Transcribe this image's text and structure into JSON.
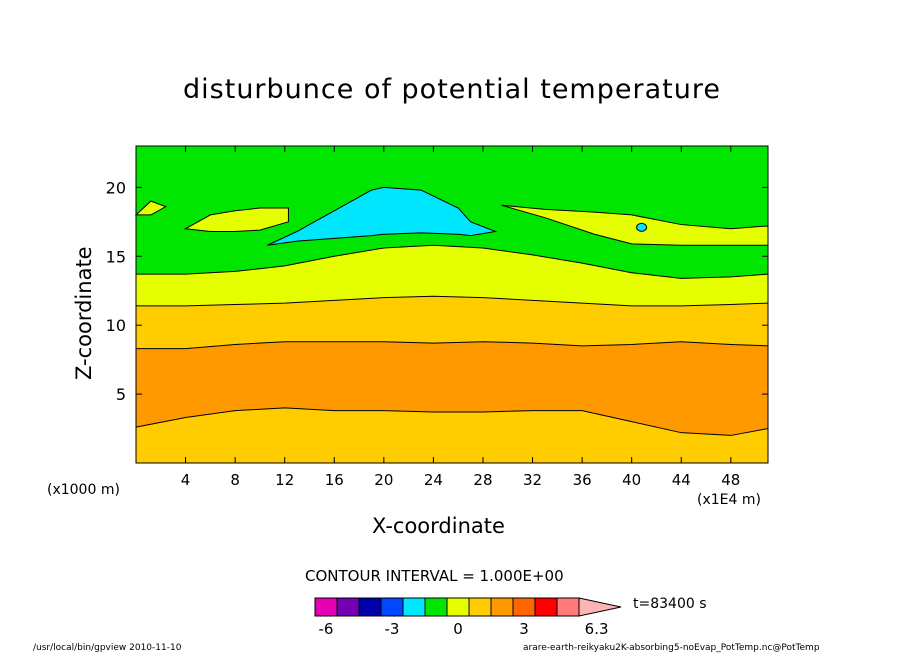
{
  "chart_data": {
    "type": "contour",
    "title": "disturbunce of potential temperature",
    "xlabel": "X-coordinate",
    "ylabel": "Z-coordinate",
    "x_unit": "(x1E4 m)",
    "z_unit": "(x1000 m)",
    "xlim": [
      0,
      51
    ],
    "ylim": [
      0,
      23
    ],
    "x_ticks": [
      4,
      8,
      12,
      16,
      20,
      24,
      28,
      32,
      36,
      40,
      44,
      48
    ],
    "y_ticks": [
      5,
      10,
      15,
      20
    ],
    "contour_interval": "CONTOUR INTERVAL = 1.000E+00",
    "time": "t=83400 s",
    "colorbar": {
      "tick_labels": [
        "-6",
        "-3",
        "0",
        "3",
        "6.3"
      ],
      "tick_values": [
        -6,
        -3,
        0,
        3,
        6.3
      ],
      "colors": [
        "#e600b4",
        "#7300b4",
        "#0000aa",
        "#0048ff",
        "#00e6ff",
        "#00e600",
        "#e6ff00",
        "#ffcc00",
        "#ff9900",
        "#ff6600",
        "#ff0000",
        "#ff7a7a",
        "#ffb4b4"
      ]
    },
    "regions": [
      {
        "level": "6",
        "color": "#ff9900",
        "x": [
          0,
          4,
          8,
          12,
          16,
          20,
          24,
          28,
          32,
          36,
          40,
          44,
          48,
          51
        ],
        "z_bottom": [
          2.6,
          3.3,
          3.8,
          4.0,
          3.8,
          3.8,
          3.7,
          3.7,
          3.8,
          3.8,
          3.0,
          2.2,
          2.0,
          2.5
        ],
        "z_top": [
          8.3,
          8.3,
          8.6,
          8.8,
          8.8,
          8.8,
          8.7,
          8.8,
          8.7,
          8.5,
          8.6,
          8.8,
          8.6,
          8.5
        ]
      },
      {
        "level": "2",
        "color": "#e6ff00",
        "x": [
          0,
          4,
          8,
          12,
          16,
          20,
          24,
          28,
          32,
          36,
          40,
          44,
          48,
          51
        ],
        "z_bottom": [
          11.4,
          11.4,
          11.5,
          11.6,
          11.8,
          12.0,
          12.1,
          12.0,
          11.8,
          11.6,
          11.4,
          11.4,
          11.5,
          11.6
        ],
        "z_top": [
          13.7,
          13.7,
          13.9,
          14.3,
          15.0,
          15.6,
          15.8,
          15.6,
          15.1,
          14.5,
          13.8,
          13.4,
          13.5,
          13.7
        ]
      },
      {
        "level": "0",
        "color": "#00e6ff",
        "x": [
          10.6,
          13,
          16,
          19,
          20,
          23,
          26,
          27,
          29
        ],
        "z_bottom": [
          15.8,
          16.1,
          16.3,
          16.5,
          16.6,
          16.7,
          16.6,
          16.5,
          16.8
        ],
        "z_top": [
          15.8,
          16.8,
          18.3,
          19.8,
          20.0,
          19.8,
          18.5,
          17.5,
          16.8
        ]
      }
    ],
    "yellow_patches": [
      {
        "x": [
          4,
          6,
          8,
          10,
          12.3
        ],
        "z_bottom": [
          17.0,
          16.8,
          16.8,
          16.9,
          17.5
        ],
        "z_top": [
          17.0,
          18.0,
          18.3,
          18.5,
          18.5
        ]
      },
      {
        "x": [
          29.5,
          33,
          37,
          40,
          44,
          48,
          51
        ],
        "z_bottom": [
          18.7,
          17.8,
          16.6,
          15.9,
          15.8,
          15.8,
          15.8
        ],
        "z_top": [
          18.7,
          18.4,
          18.2,
          18.0,
          17.3,
          17.0,
          17.2
        ]
      },
      {
        "x": [
          0,
          1.2,
          2.4
        ],
        "z_bottom": [
          18.0,
          18.0,
          18.6
        ],
        "z_top": [
          18.0,
          19.0,
          18.6
        ]
      }
    ]
  },
  "footer": {
    "left": "/usr/local/bin/gpview  2010-11-10",
    "right": "arare-earth-reikyaku2K-absorbing5-noEvap_PotTemp.nc@PotTemp"
  }
}
